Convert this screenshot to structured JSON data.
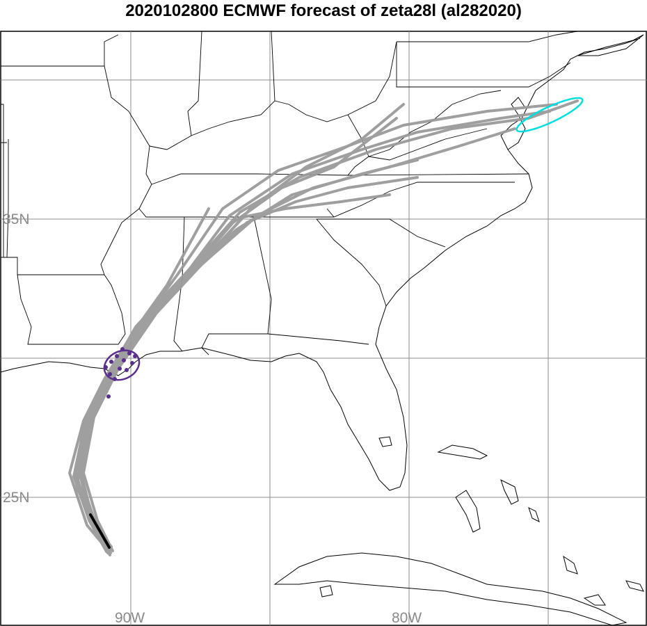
{
  "title": "2020102800 ECMWF forecast of zeta28l (al282020)",
  "map": {
    "lat_labels": [
      "35N",
      "25N"
    ],
    "lon_labels": [
      "90W",
      "80W"
    ],
    "colors": {
      "ensemble_tracks": "#9a9a9a",
      "ensemble_members": "#5b2d8e",
      "ellipse_landfall": "#5b2d8e",
      "ellipse_end": "#00e0e0",
      "observed_track": "#000000",
      "coastline": "#000000",
      "grid": "#8c8c8c"
    }
  }
}
